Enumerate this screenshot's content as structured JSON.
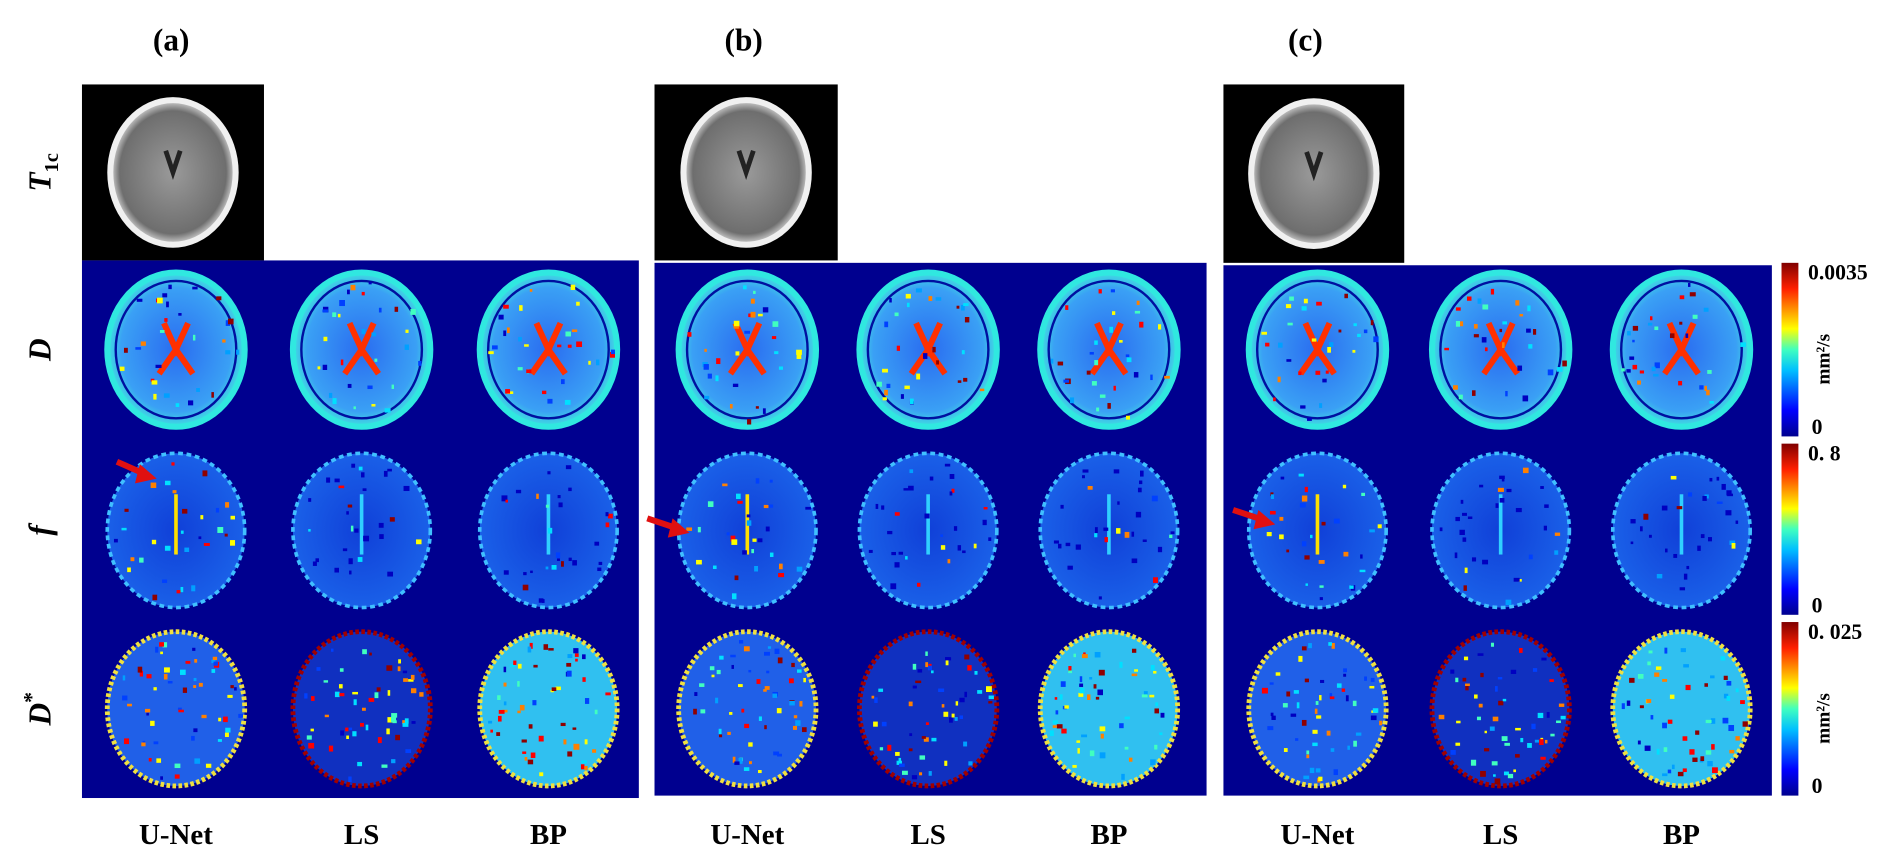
{
  "panels": [
    {
      "label": "(a)",
      "columns": [
        "U-Net",
        "LS",
        "BP"
      ]
    },
    {
      "label": "(b)",
      "columns": [
        "U-Net",
        "LS",
        "BP"
      ]
    },
    {
      "label": "(c)",
      "columns": [
        "U-Net",
        "LS",
        "BP"
      ]
    }
  ],
  "row_labels": [
    {
      "main": "T",
      "sub": "1c"
    },
    {
      "main": "D"
    },
    {
      "main": "f"
    },
    {
      "main": "D",
      "sup": "*"
    }
  ],
  "colorbars": [
    {
      "max": "0.0035",
      "unit": "mm²/s",
      "min": "0"
    },
    {
      "max": "0. 8",
      "min": "0"
    },
    {
      "max": "0. 025",
      "unit": "mm²/s",
      "min": "0"
    }
  ]
}
